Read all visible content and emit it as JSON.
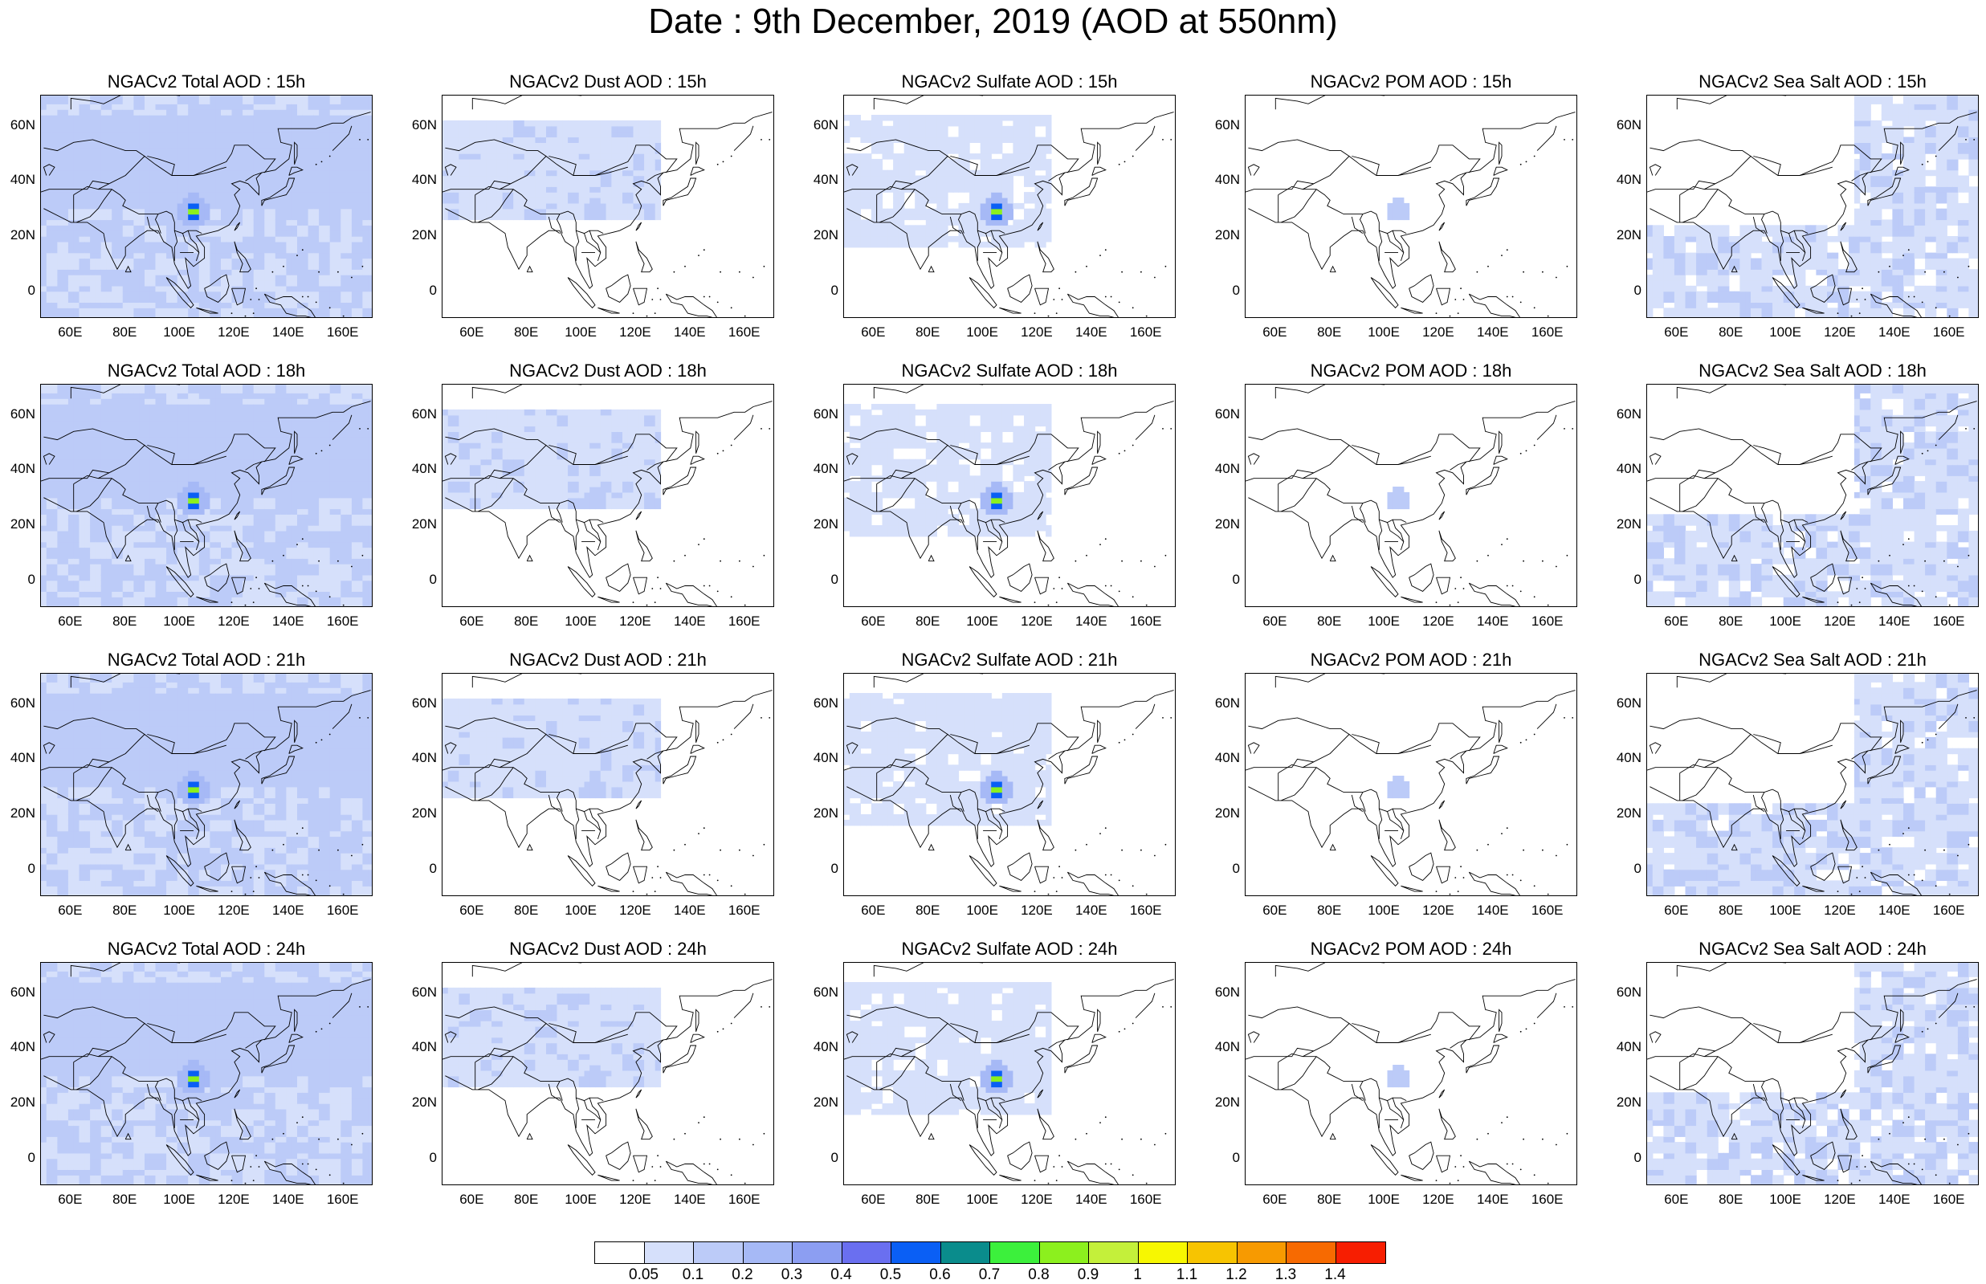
{
  "title": "Date : 9th December, 2019 (AOD at 550nm)",
  "axes": {
    "x_ticks": [
      "60E",
      "80E",
      "100E",
      "120E",
      "140E",
      "160E"
    ],
    "y_ticks": [
      "60N",
      "40N",
      "20N",
      "0"
    ]
  },
  "panels": [
    [
      "NGACv2 Total AOD : 15h",
      "NGACv2 Dust AOD : 15h",
      "NGACv2 Sulfate AOD : 15h",
      "NGACv2 POM AOD : 15h",
      "NGACv2 Sea Salt AOD : 15h"
    ],
    [
      "NGACv2 Total AOD : 18h",
      "NGACv2 Dust AOD : 18h",
      "NGACv2 Sulfate AOD : 18h",
      "NGACv2 POM AOD : 18h",
      "NGACv2 Sea Salt AOD : 18h"
    ],
    [
      "NGACv2 Total AOD : 21h",
      "NGACv2 Dust AOD : 21h",
      "NGACv2 Sulfate AOD : 21h",
      "NGACv2 POM AOD : 21h",
      "NGACv2 Sea Salt AOD : 21h"
    ],
    [
      "NGACv2 Total AOD : 24h",
      "NGACv2 Dust AOD : 24h",
      "NGACv2 Sulfate AOD : 24h",
      "NGACv2 POM AOD : 24h",
      "NGACv2 Sea Salt  AOD : 24h"
    ]
  ],
  "colorbar": {
    "labels": [
      "0.05",
      "0.1",
      "0.2",
      "0.3",
      "0.4",
      "0.5",
      "0.6",
      "0.7",
      "0.8",
      "0.9",
      "1",
      "1.1",
      "1.2",
      "1.3",
      "1.4"
    ],
    "colors": [
      "#ffffff",
      "#d6e0fb",
      "#bccbf8",
      "#a6b9f6",
      "#8c9ef2",
      "#6a6ff0",
      "#0a5ff5",
      "#0a8c8c",
      "#3cf03c",
      "#8cf01e",
      "#c4f03a",
      "#f7f701",
      "#f7c401",
      "#f79a01",
      "#f76a01",
      "#f71e01"
    ]
  }
}
